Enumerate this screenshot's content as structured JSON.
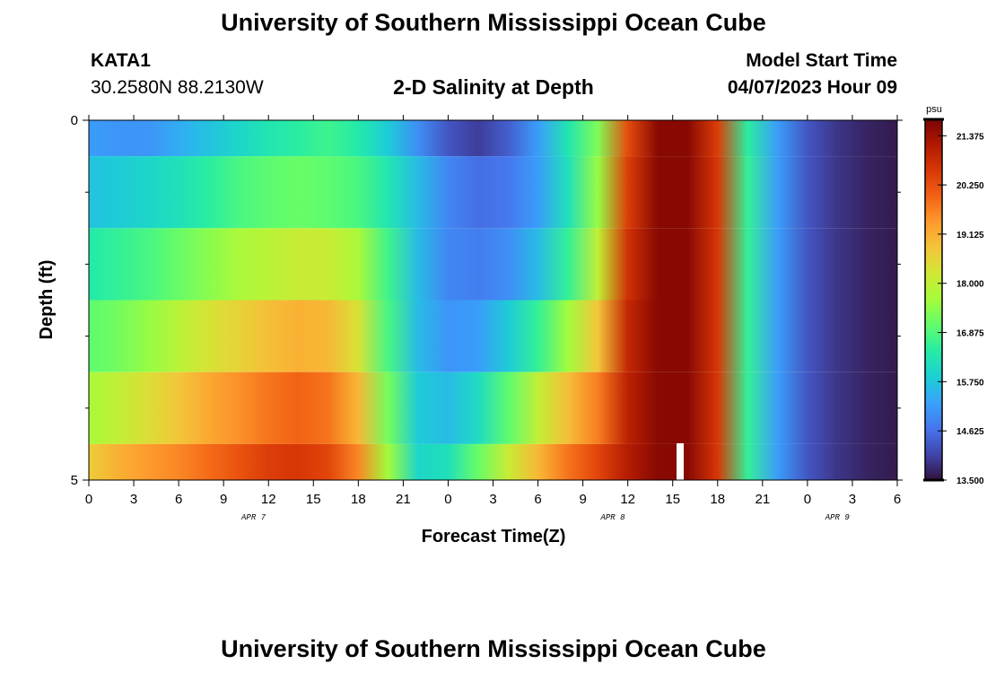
{
  "page": {
    "title": "University of Southern Mississippi Ocean Cube",
    "station": "KATA1",
    "coords": "30.2580N  88.2130W",
    "chart_heading": "2-D Salinity at Depth",
    "model_label": "Model Start Time",
    "model_time": "04/07/2023 Hour 09",
    "footer_title": "University of Southern Mississippi Ocean Cube"
  },
  "chart_data": {
    "type": "heatmap",
    "title": "2-D Salinity at Depth",
    "xlabel": "Forecast Time(Z)",
    "ylabel": "Depth (ft)",
    "x_tick_labels": [
      "0",
      "3",
      "6",
      "9",
      "12",
      "15",
      "18",
      "21",
      "0",
      "3",
      "6",
      "9",
      "12",
      "15",
      "18",
      "21",
      "0",
      "3",
      "6"
    ],
    "x_range_hours": [
      0,
      54
    ],
    "date_labels": [
      {
        "text": "APR 7",
        "hour": 11
      },
      {
        "text": "APR 8",
        "hour": 35
      },
      {
        "text": "APR 9",
        "hour": 50
      }
    ],
    "y_range": [
      0,
      5
    ],
    "y_tick_labels": [
      "0",
      "5"
    ],
    "y_minor_ticks": [
      1,
      2,
      3,
      4
    ],
    "colorbar": {
      "unit": "psu",
      "min": 13.5,
      "max": 21.75,
      "tick_values": [
        21.375,
        20.25,
        19.125,
        18.0,
        16.875,
        15.75,
        14.625,
        13.5
      ],
      "tick_labels": [
        "21.375",
        "20.250",
        "19.125",
        "18.000",
        "16.875",
        "15.750",
        "14.625",
        "13.500"
      ],
      "colors": [
        "#30123b",
        "#4145ab",
        "#4675ed",
        "#39a2fc",
        "#1bcfd4",
        "#24eca6",
        "#61fc6c",
        "#a4fc3b",
        "#d1e834",
        "#f3c63a",
        "#fe9b2d",
        "#f36315",
        "#d93806",
        "#b11901",
        "#7a0402"
      ]
    },
    "depth_layers_ft": [
      [
        0,
        0.5
      ],
      [
        0.5,
        1.5
      ],
      [
        1.5,
        2.5
      ],
      [
        2.5,
        3.5
      ],
      [
        3.5,
        4.5
      ],
      [
        4.5,
        5
      ]
    ],
    "time_hours": [
      0,
      2,
      4,
      6,
      8,
      10,
      12,
      14,
      16,
      18,
      20,
      22,
      24,
      26,
      28,
      30,
      32,
      34,
      36,
      38,
      40,
      42,
      44,
      46,
      48,
      50,
      52,
      54
    ],
    "salinity_psu": [
      [
        15.2,
        15.1,
        15.1,
        15.4,
        15.7,
        16.0,
        16.3,
        16.5,
        16.7,
        16.4,
        15.8,
        15.0,
        14.3,
        14.0,
        14.4,
        15.2,
        16.3,
        17.3,
        20.3,
        21.6,
        21.6,
        20.5,
        16.5,
        15.2,
        14.3,
        13.9,
        13.7,
        13.6
      ],
      [
        15.7,
        15.8,
        16.0,
        16.2,
        16.5,
        16.8,
        17.0,
        17.1,
        17.0,
        16.8,
        16.3,
        15.6,
        14.9,
        14.6,
        14.7,
        15.2,
        16.2,
        17.5,
        20.5,
        21.6,
        21.6,
        20.6,
        16.6,
        15.2,
        14.3,
        13.9,
        13.7,
        13.6
      ],
      [
        16.4,
        16.6,
        16.8,
        17.1,
        17.4,
        17.7,
        17.9,
        18.1,
        18.1,
        17.7,
        16.7,
        15.6,
        14.9,
        14.8,
        15.0,
        15.6,
        16.6,
        18.0,
        20.7,
        21.6,
        21.6,
        20.6,
        16.6,
        15.2,
        14.3,
        13.9,
        13.7,
        13.6
      ],
      [
        17.0,
        17.2,
        17.5,
        17.9,
        18.3,
        18.6,
        18.9,
        19.1,
        19.0,
        18.3,
        16.8,
        15.6,
        15.1,
        15.2,
        15.8,
        16.6,
        17.6,
        18.8,
        20.9,
        21.6,
        21.6,
        20.6,
        16.6,
        15.2,
        14.3,
        13.9,
        13.7,
        13.6
      ],
      [
        17.7,
        18.0,
        18.4,
        18.8,
        19.2,
        19.5,
        19.8,
        20.0,
        19.8,
        19.0,
        17.2,
        15.8,
        15.6,
        16.1,
        17.0,
        18.0,
        18.9,
        19.7,
        21.0,
        21.6,
        21.6,
        20.6,
        16.6,
        15.2,
        14.3,
        13.9,
        13.7,
        13.6
      ],
      [
        18.7,
        19.1,
        19.4,
        19.6,
        19.9,
        20.2,
        20.5,
        20.6,
        20.4,
        19.6,
        17.6,
        16.0,
        16.2,
        17.1,
        18.1,
        19.0,
        19.8,
        20.4,
        21.1,
        21.6,
        21.6,
        20.6,
        16.6,
        15.2,
        14.3,
        13.9,
        13.7,
        13.6
      ]
    ]
  }
}
